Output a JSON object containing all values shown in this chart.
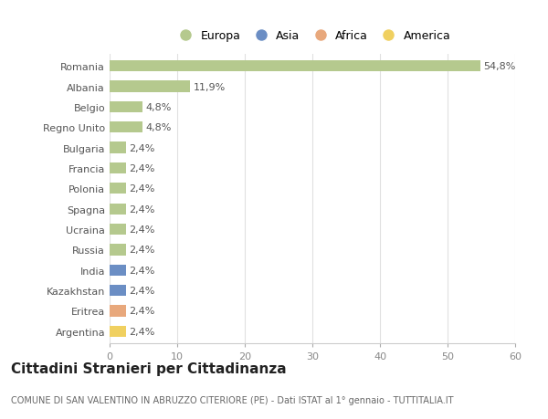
{
  "categories": [
    "Romania",
    "Albania",
    "Belgio",
    "Regno Unito",
    "Bulgaria",
    "Francia",
    "Polonia",
    "Spagna",
    "Ucraina",
    "Russia",
    "India",
    "Kazakhstan",
    "Eritrea",
    "Argentina"
  ],
  "values": [
    54.8,
    11.9,
    4.8,
    4.8,
    2.4,
    2.4,
    2.4,
    2.4,
    2.4,
    2.4,
    2.4,
    2.4,
    2.4,
    2.4
  ],
  "labels": [
    "54,8%",
    "11,9%",
    "4,8%",
    "4,8%",
    "2,4%",
    "2,4%",
    "2,4%",
    "2,4%",
    "2,4%",
    "2,4%",
    "2,4%",
    "2,4%",
    "2,4%",
    "2,4%"
  ],
  "colors": [
    "#b5c98e",
    "#b5c98e",
    "#b5c98e",
    "#b5c98e",
    "#b5c98e",
    "#b5c98e",
    "#b5c98e",
    "#b5c98e",
    "#b5c98e",
    "#b5c98e",
    "#6b8ec4",
    "#6b8ec4",
    "#e8a87c",
    "#f0d060"
  ],
  "legend_labels": [
    "Europa",
    "Asia",
    "Africa",
    "America"
  ],
  "legend_colors": [
    "#b5c98e",
    "#6b8ec4",
    "#e8a87c",
    "#f0d060"
  ],
  "title": "Cittadini Stranieri per Cittadinanza",
  "subtitle": "COMUNE DI SAN VALENTINO IN ABRUZZO CITERIORE (PE) - Dati ISTAT al 1° gennaio - TUTTITALIA.IT",
  "xlim": [
    0,
    60
  ],
  "xticks": [
    0,
    10,
    20,
    30,
    40,
    50,
    60
  ],
  "background_color": "#ffffff",
  "bar_height": 0.55,
  "grid_color": "#e0e0e0",
  "label_fontsize": 8,
  "tick_fontsize": 8,
  "title_fontsize": 11,
  "subtitle_fontsize": 7
}
